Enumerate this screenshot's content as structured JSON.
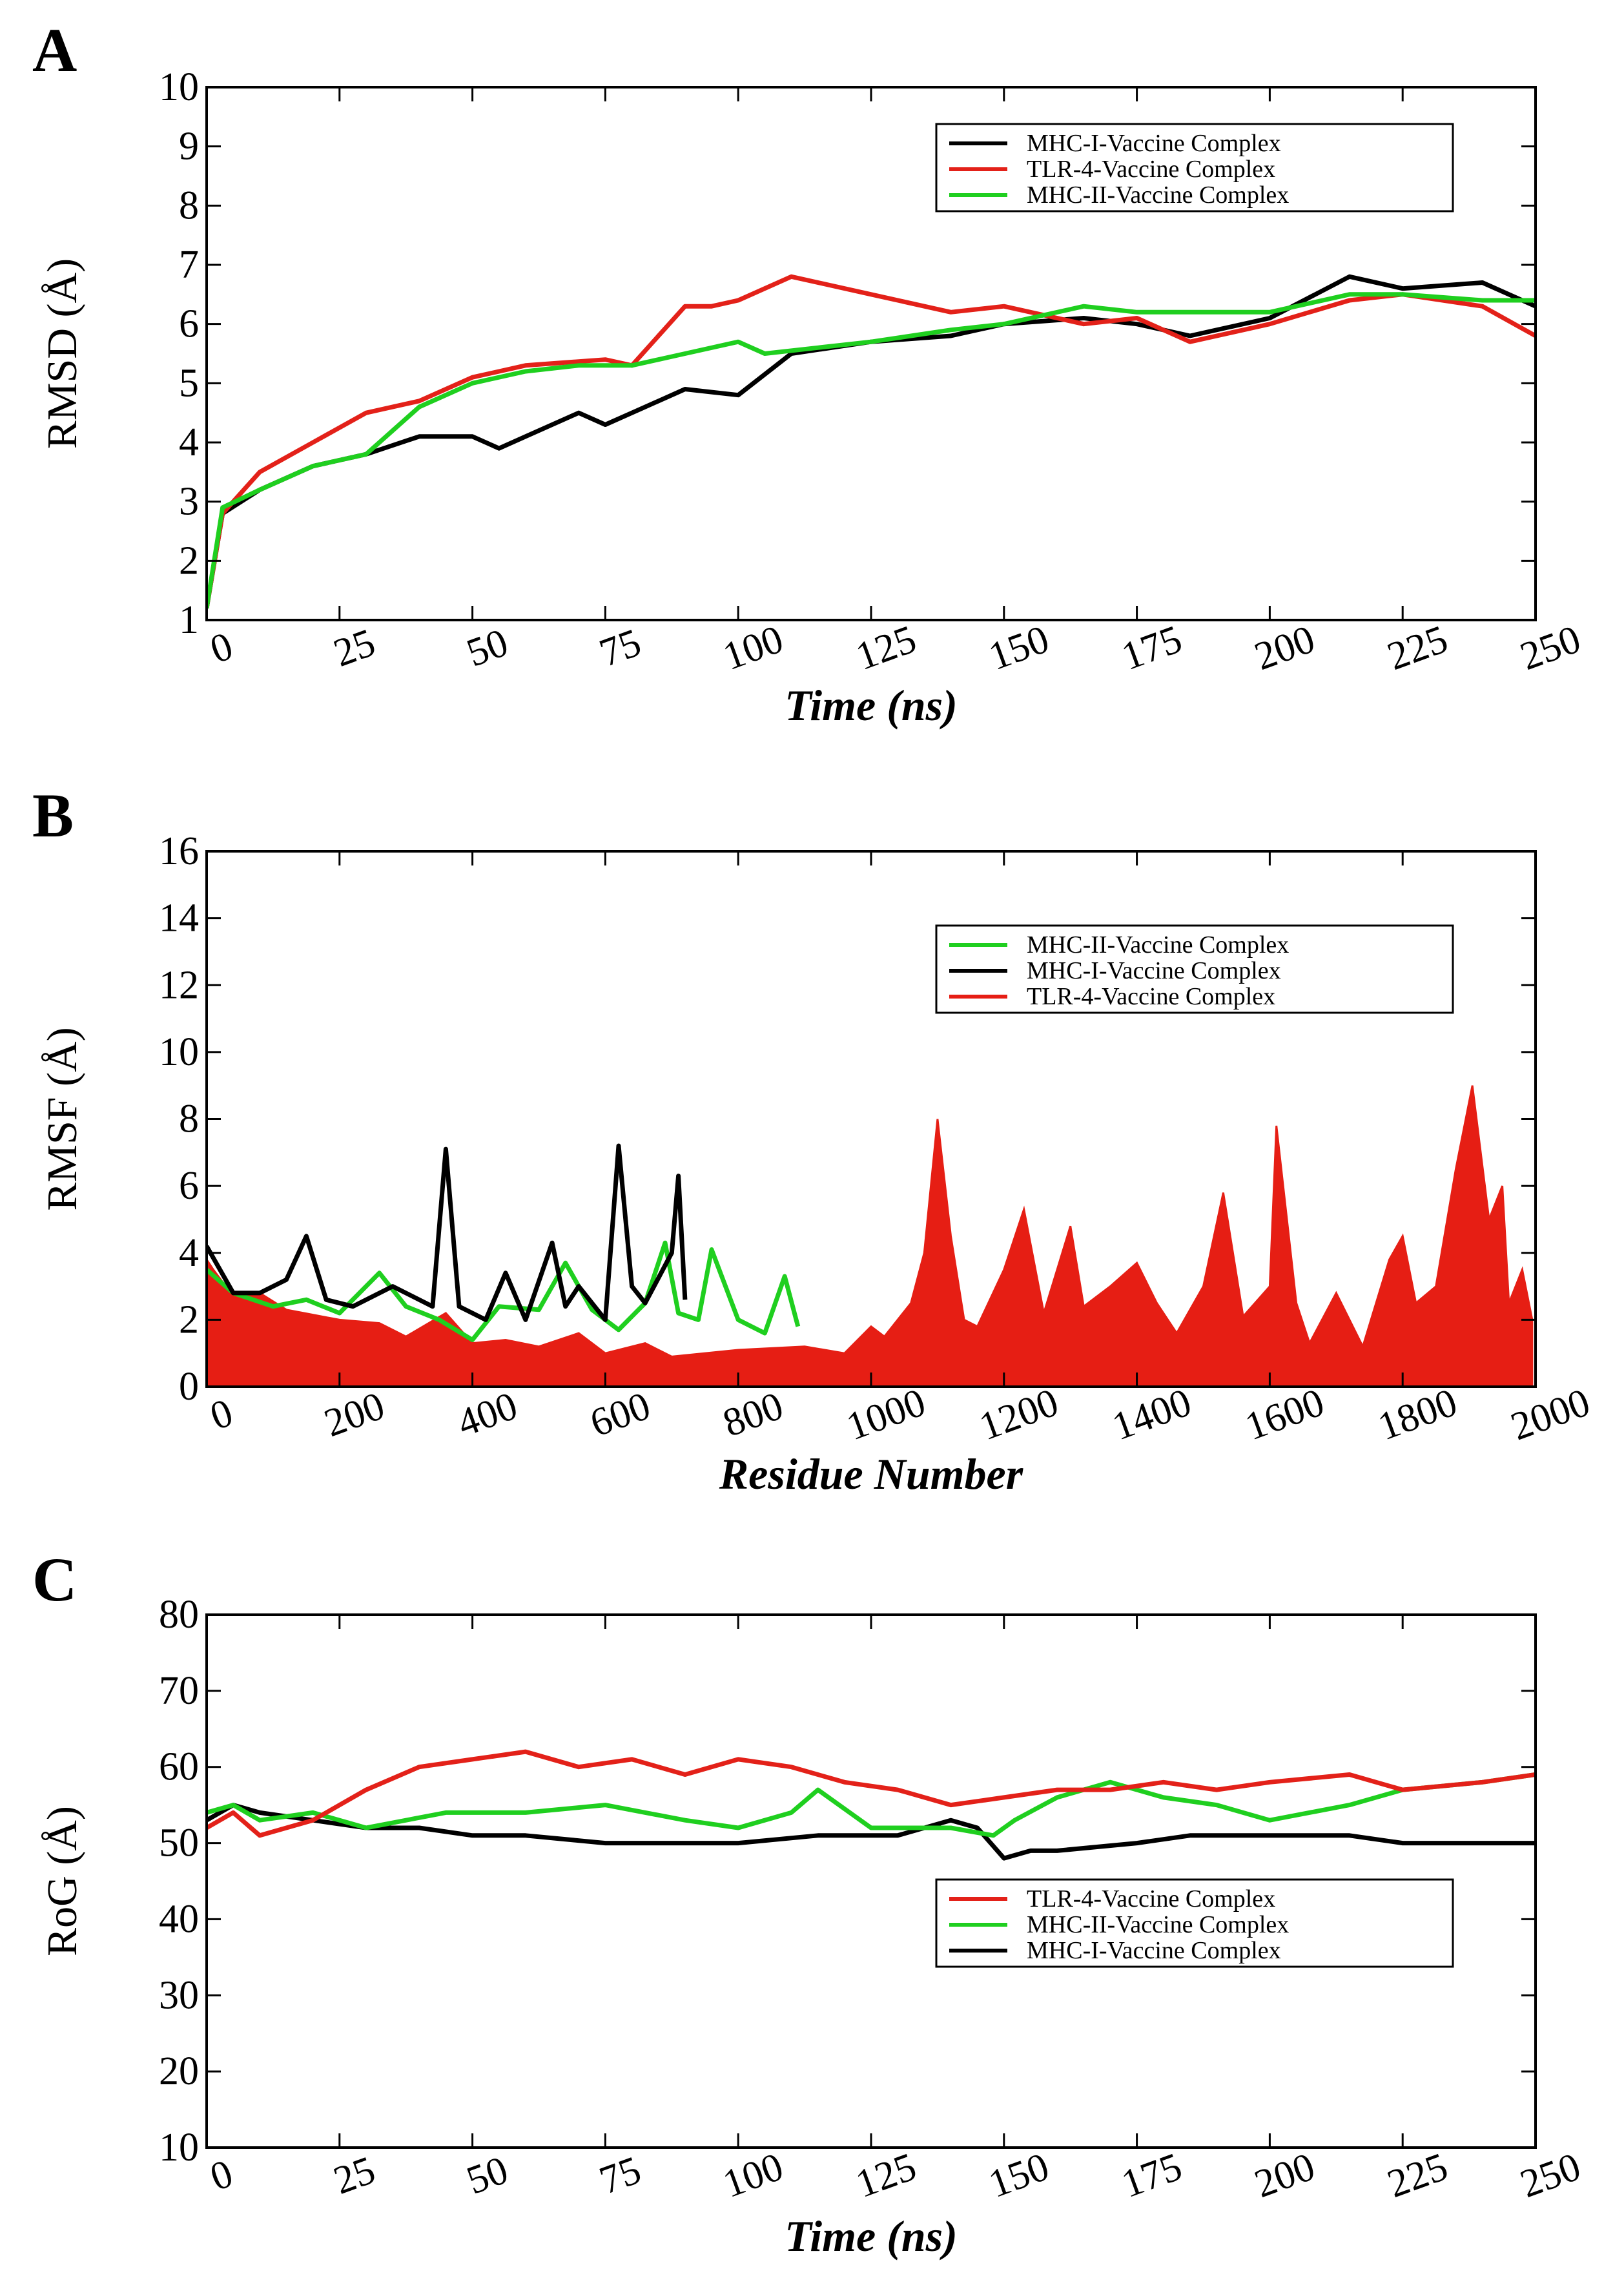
{
  "chart_data": [
    {
      "panel": "A",
      "type": "line",
      "xlabel": "Time (ns)",
      "ylabel": "RMSD (Å)",
      "xlim": [
        0,
        250
      ],
      "ylim": [
        1,
        10
      ],
      "xticks": [
        0,
        25,
        50,
        75,
        100,
        125,
        150,
        175,
        200,
        225,
        250
      ],
      "yticks": [
        1,
        2,
        3,
        4,
        5,
        6,
        7,
        8,
        9,
        10
      ],
      "legend_position": "top-right",
      "legend": [
        "MHC-I-Vaccine Complex",
        "TLR-4-Vaccine Complex",
        "MHC-II-Vaccine Complex"
      ],
      "series": [
        {
          "name": "MHC-I-Vaccine Complex",
          "color": "#000000",
          "x": [
            0,
            3,
            10,
            20,
            30,
            40,
            50,
            55,
            60,
            70,
            75,
            80,
            90,
            100,
            110,
            125,
            140,
            150,
            165,
            175,
            185,
            200,
            215,
            225,
            240,
            250
          ],
          "y": [
            1.2,
            2.8,
            3.2,
            3.6,
            3.8,
            4.1,
            4.1,
            3.9,
            4.1,
            4.5,
            4.3,
            4.5,
            4.9,
            4.8,
            5.5,
            5.7,
            5.8,
            6.0,
            6.1,
            6.0,
            5.8,
            6.1,
            6.8,
            6.6,
            6.7,
            6.3
          ]
        },
        {
          "name": "TLR-4-Vaccine Complex",
          "color": "#e32119",
          "x": [
            0,
            3,
            10,
            20,
            30,
            40,
            50,
            60,
            75,
            80,
            90,
            95,
            100,
            110,
            125,
            140,
            150,
            165,
            175,
            185,
            200,
            215,
            225,
            240,
            250
          ],
          "y": [
            1.2,
            2.8,
            3.5,
            4.0,
            4.5,
            4.7,
            5.1,
            5.3,
            5.4,
            5.3,
            6.3,
            6.3,
            6.4,
            6.8,
            6.5,
            6.2,
            6.3,
            6.0,
            6.1,
            5.7,
            6.0,
            6.4,
            6.5,
            6.3,
            5.8
          ]
        },
        {
          "name": "MHC-II-Vaccine Complex",
          "color": "#1fcf1f",
          "x": [
            0,
            3,
            10,
            20,
            30,
            40,
            50,
            60,
            70,
            80,
            90,
            100,
            105,
            115,
            125,
            140,
            150,
            165,
            175,
            190,
            200,
            215,
            225,
            240,
            250
          ],
          "y": [
            1.2,
            2.9,
            3.2,
            3.6,
            3.8,
            4.6,
            5.0,
            5.2,
            5.3,
            5.3,
            5.5,
            5.7,
            5.5,
            5.6,
            5.7,
            5.9,
            6.0,
            6.3,
            6.2,
            6.2,
            6.2,
            6.5,
            6.5,
            6.4,
            6.4
          ]
        }
      ]
    },
    {
      "panel": "B",
      "type": "area",
      "xlabel": "Residue Number",
      "ylabel": "RMSF (Å)",
      "xlim": [
        0,
        2000
      ],
      "ylim": [
        0,
        16
      ],
      "xticks": [
        0,
        200,
        400,
        600,
        800,
        1000,
        1200,
        1400,
        1600,
        1800,
        2000
      ],
      "yticks": [
        0,
        2,
        4,
        6,
        8,
        10,
        12,
        14,
        16
      ],
      "legend_position": "top-right",
      "legend": [
        "MHC-II-Vaccine Complex",
        "MHC-I-Vaccine Complex",
        "TLR-4-Vaccine Complex"
      ],
      "series": [
        {
          "name": "TLR-4-Vaccine Complex",
          "color": "#e61e14",
          "fill": true,
          "x": [
            0,
            10,
            40,
            80,
            120,
            200,
            260,
            300,
            360,
            400,
            450,
            500,
            560,
            600,
            660,
            700,
            800,
            900,
            960,
            1000,
            1020,
            1060,
            1080,
            1100,
            1120,
            1140,
            1160,
            1200,
            1230,
            1260,
            1280,
            1300,
            1320,
            1360,
            1400,
            1430,
            1460,
            1500,
            1530,
            1560,
            1600,
            1610,
            1640,
            1660,
            1700,
            1740,
            1780,
            1800,
            1820,
            1850,
            1880,
            1905,
            1930,
            1950,
            1960,
            1980,
            1995
          ],
          "y": [
            3.8,
            3.5,
            2.7,
            2.8,
            2.3,
            2.0,
            1.9,
            1.5,
            2.2,
            1.3,
            1.4,
            1.2,
            1.6,
            1.0,
            1.3,
            0.9,
            1.1,
            1.2,
            1.0,
            1.8,
            1.5,
            2.5,
            4.0,
            8.0,
            4.5,
            2.0,
            1.8,
            3.5,
            5.3,
            2.2,
            3.5,
            4.8,
            2.4,
            3.0,
            3.7,
            2.5,
            1.6,
            3.0,
            5.8,
            2.1,
            3.0,
            7.8,
            2.5,
            1.3,
            2.8,
            1.2,
            3.8,
            4.5,
            2.5,
            3.0,
            6.5,
            9.0,
            5.0,
            6.0,
            2.5,
            3.5,
            2.0
          ]
        },
        {
          "name": "MHC-II-Vaccine Complex",
          "color": "#1fcf1f",
          "x": [
            0,
            40,
            100,
            150,
            200,
            260,
            300,
            350,
            400,
            440,
            500,
            540,
            580,
            620,
            660,
            690,
            710,
            740,
            760,
            800,
            840,
            870,
            890
          ],
          "y": [
            3.5,
            2.8,
            2.4,
            2.6,
            2.2,
            3.4,
            2.4,
            2.0,
            1.4,
            2.4,
            2.3,
            3.7,
            2.3,
            1.7,
            2.5,
            4.3,
            2.2,
            2.0,
            4.1,
            2.0,
            1.6,
            3.3,
            1.8
          ]
        },
        {
          "name": "MHC-I-Vaccine Complex",
          "color": "#000000",
          "x": [
            0,
            40,
            80,
            120,
            150,
            180,
            220,
            280,
            340,
            360,
            380,
            420,
            450,
            480,
            520,
            540,
            560,
            600,
            620,
            640,
            660,
            700,
            710,
            720
          ],
          "y": [
            4.2,
            2.8,
            2.8,
            3.2,
            4.5,
            2.6,
            2.4,
            3.0,
            2.4,
            7.1,
            2.4,
            2.0,
            3.4,
            2.0,
            4.3,
            2.4,
            3.0,
            2.0,
            7.2,
            3.0,
            2.5,
            4.0,
            6.3,
            2.6
          ]
        }
      ]
    },
    {
      "panel": "C",
      "type": "line",
      "xlabel": "Time (ns)",
      "ylabel": "RoG (Å)",
      "xlim": [
        0,
        250
      ],
      "ylim": [
        10,
        80
      ],
      "xticks": [
        0,
        25,
        50,
        75,
        100,
        125,
        150,
        175,
        200,
        225,
        250
      ],
      "yticks": [
        10,
        20,
        30,
        40,
        50,
        60,
        70,
        80
      ],
      "legend_position": "center-right",
      "legend": [
        "TLR-4-Vaccine Complex",
        "MHC-II-Vaccine Complex",
        "MHC-I-Vaccine Complex"
      ],
      "series": [
        {
          "name": "MHC-I-Vaccine Complex",
          "color": "#000000",
          "x": [
            0,
            5,
            10,
            20,
            30,
            40,
            50,
            60,
            75,
            90,
            100,
            115,
            130,
            140,
            145,
            150,
            155,
            160,
            175,
            185,
            200,
            215,
            225,
            240,
            250
          ],
          "y": [
            53,
            55,
            54,
            53,
            52,
            52,
            51,
            51,
            50,
            50,
            50,
            51,
            51,
            53,
            52,
            48,
            49,
            49,
            50,
            51,
            51,
            51,
            50,
            50,
            50
          ]
        },
        {
          "name": "MHC-II-Vaccine Complex",
          "color": "#1fcf1f",
          "x": [
            0,
            5,
            10,
            20,
            30,
            45,
            60,
            75,
            90,
            100,
            110,
            115,
            125,
            140,
            148,
            152,
            160,
            170,
            180,
            190,
            200,
            215,
            225,
            240,
            250
          ],
          "y": [
            54,
            55,
            53,
            54,
            52,
            54,
            54,
            55,
            53,
            52,
            54,
            57,
            52,
            52,
            51,
            53,
            56,
            58,
            56,
            55,
            53,
            55,
            57,
            58,
            59
          ]
        },
        {
          "name": "TLR-4-Vaccine Complex",
          "color": "#e32119",
          "x": [
            0,
            5,
            10,
            20,
            30,
            40,
            50,
            60,
            70,
            80,
            90,
            100,
            110,
            120,
            130,
            140,
            150,
            160,
            170,
            180,
            190,
            200,
            215,
            225,
            240,
            250
          ],
          "y": [
            52,
            54,
            51,
            53,
            57,
            60,
            61,
            62,
            60,
            61,
            59,
            61,
            60,
            58,
            57,
            55,
            56,
            57,
            57,
            58,
            57,
            58,
            59,
            57,
            58,
            59
          ]
        }
      ]
    }
  ]
}
